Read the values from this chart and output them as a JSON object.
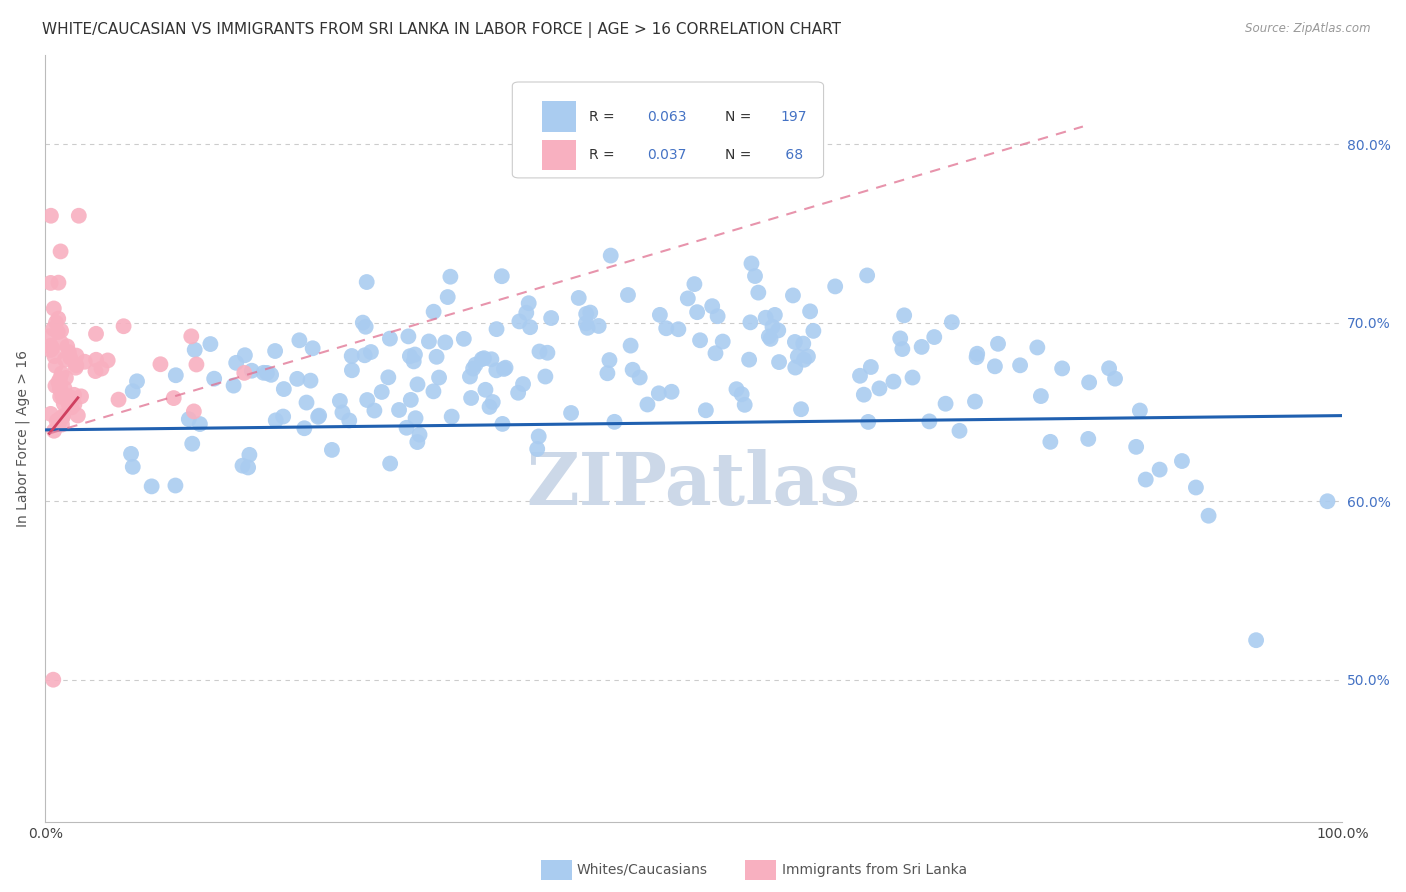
{
  "title": "WHITE/CAUCASIAN VS IMMIGRANTS FROM SRI LANKA IN LABOR FORCE | AGE > 16 CORRELATION CHART",
  "source": "Source: ZipAtlas.com",
  "ylabel": "In Labor Force | Age > 16",
  "ytick_vals": [
    0.5,
    0.6,
    0.7,
    0.8
  ],
  "blue_R": "0.063",
  "blue_N": "197",
  "pink_R": "0.037",
  "pink_N": "68",
  "blue_color": "#aaccf0",
  "blue_line_color": "#2060b0",
  "pink_color": "#f8b0c0",
  "pink_line_color": "#d04060",
  "pink_dash_color": "#e07090",
  "legend_label_blue": "Whites/Caucasians",
  "legend_label_pink": "Immigrants from Sri Lanka",
  "watermark": "ZIPatlas",
  "xlim": [
    0.0,
    1.0
  ],
  "ylim": [
    0.42,
    0.85
  ],
  "background_color": "#ffffff",
  "grid_color": "#cccccc",
  "title_fontsize": 11,
  "axis_label_fontsize": 10,
  "tick_fontsize": 10,
  "watermark_color": "#ccd8e8",
  "watermark_fontsize": 52,
  "blue_seed": 42,
  "pink_seed": 7
}
